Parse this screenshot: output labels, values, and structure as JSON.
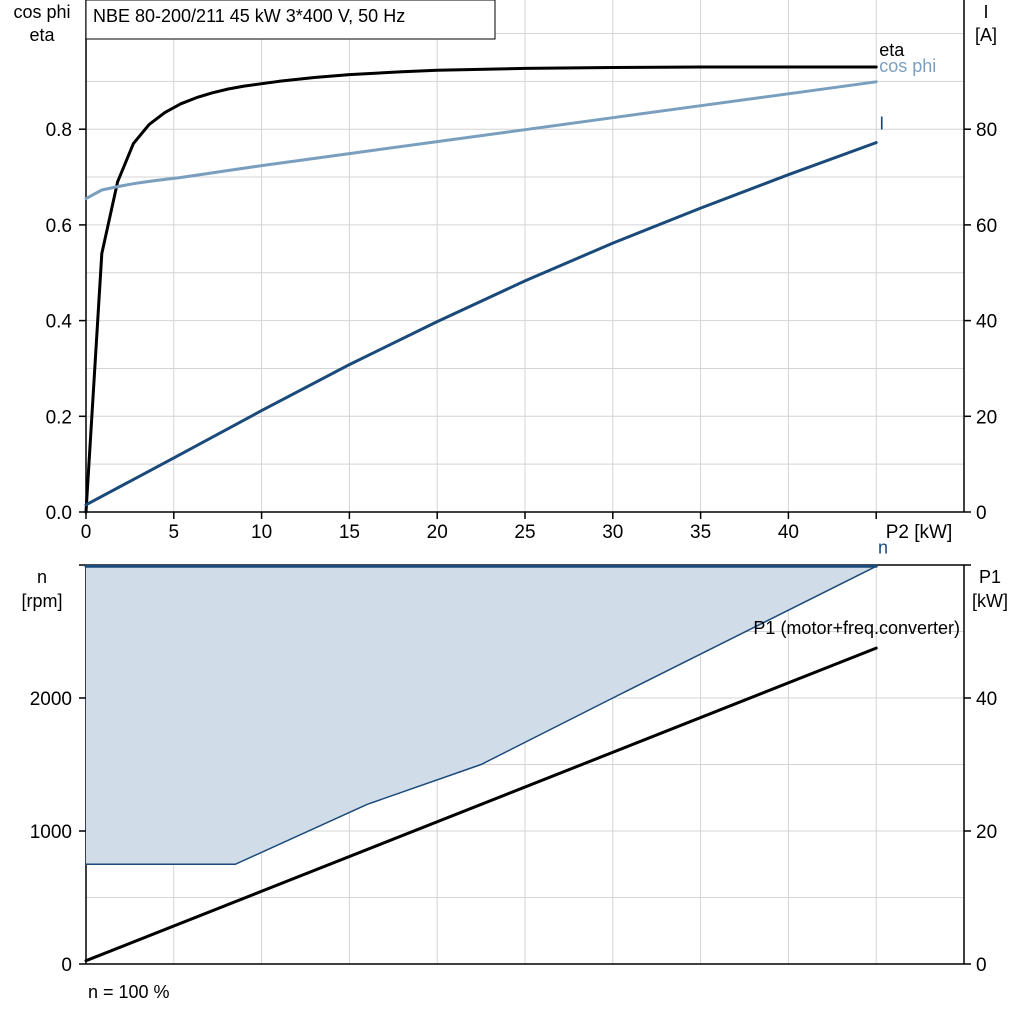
{
  "chart_data": [
    {
      "type": "line",
      "title": "NBE 80-200/211   45 kW   3*400 V, 50 Hz",
      "xlabel": "P2 [kW]",
      "ylabel_left_line1": "cos phi",
      "ylabel_left_line2": "eta",
      "ylabel_right_line1": "I",
      "ylabel_right_line2": "[A]",
      "xlim": [
        0,
        50
      ],
      "ylim_left": [
        0,
        1.07
      ],
      "ylim_right": [
        0,
        107
      ],
      "x_ticks": [
        0,
        5,
        10,
        15,
        20,
        25,
        30,
        35,
        40
      ],
      "x_tick_labels": [
        "0",
        "5",
        "10",
        "15",
        "20",
        "25",
        "30",
        "35",
        "40"
      ],
      "y_left_ticks": [
        0,
        0.2,
        0.4,
        0.6,
        0.8
      ],
      "y_left_tick_labels": [
        "0.0",
        "0.2",
        "0.4",
        "0.6",
        "0.8"
      ],
      "y_right_ticks": [
        0,
        20,
        40,
        60,
        80
      ],
      "y_right_tick_labels": [
        "0",
        "20",
        "40",
        "60",
        "80"
      ],
      "grid": true,
      "series": [
        {
          "name": "eta",
          "axis": "left",
          "color": "#000000",
          "x": [
            0,
            0.9,
            1.8,
            2.7,
            3.6,
            4.5,
            5.4,
            6.3,
            7.2,
            8.1,
            9,
            11,
            13,
            15,
            18,
            20,
            25,
            30,
            35,
            40,
            45
          ],
          "y": [
            0.0,
            0.54,
            0.69,
            0.77,
            0.81,
            0.835,
            0.853,
            0.866,
            0.876,
            0.884,
            0.89,
            0.9,
            0.908,
            0.914,
            0.92,
            0.923,
            0.927,
            0.929,
            0.93,
            0.93,
            0.93
          ]
        },
        {
          "name": "cos phi",
          "axis": "left",
          "color": "#7a9fbe",
          "x": [
            0,
            0.9,
            1.8,
            2.7,
            3.6,
            4.5,
            5.4,
            10,
            15,
            20,
            25,
            30,
            35,
            40,
            45
          ],
          "y": [
            0.655,
            0.673,
            0.68,
            0.686,
            0.691,
            0.695,
            0.699,
            0.724,
            0.749,
            0.774,
            0.799,
            0.824,
            0.849,
            0.874,
            0.899
          ]
        },
        {
          "name": "I",
          "axis": "right",
          "color": "#1a4a7a",
          "x": [
            0,
            5,
            10,
            15,
            20,
            25,
            30,
            35,
            40,
            45
          ],
          "y": [
            1.5,
            11.3,
            21.2,
            30.8,
            39.8,
            48.3,
            56.2,
            63.5,
            70.5,
            77.2
          ]
        }
      ]
    },
    {
      "type": "area",
      "xlim": [
        0,
        50
      ],
      "ylim_left": [
        0,
        3000
      ],
      "ylim_right": [
        0,
        60
      ],
      "ylabel_left_line1": "n",
      "ylabel_left_line2": "[rpm]",
      "ylabel_right_line1": "P1",
      "ylabel_right_line2": "[kW]",
      "y_left_ticks": [
        0,
        1000,
        2000
      ],
      "y_left_tick_labels": [
        "0",
        "1000",
        "2000"
      ],
      "y_right_ticks": [
        0,
        20,
        40
      ],
      "y_right_tick_labels": [
        "0",
        "20",
        "40"
      ],
      "grid": true,
      "series": [
        {
          "name": "n",
          "axis": "left",
          "color": "#1a4a7a",
          "x": [
            0,
            45
          ],
          "y": [
            2990,
            2990
          ]
        },
        {
          "name": "P1 (motor+freq.converter)",
          "axis": "right",
          "color": "#000000",
          "x": [
            0,
            45
          ],
          "y": [
            0.5,
            47.5
          ]
        }
      ],
      "operating_area": {
        "fill": "#d0dce8",
        "stroke": "#1a4a7a",
        "upper_x": [
          0,
          45
        ],
        "upper_y": [
          2990,
          2990
        ],
        "lower_x": [
          0,
          8.5,
          16,
          22.5,
          30,
          45
        ],
        "lower_y": [
          750,
          750,
          1200,
          1500,
          2000,
          2990
        ]
      },
      "footnote": "n = 100 %"
    }
  ]
}
